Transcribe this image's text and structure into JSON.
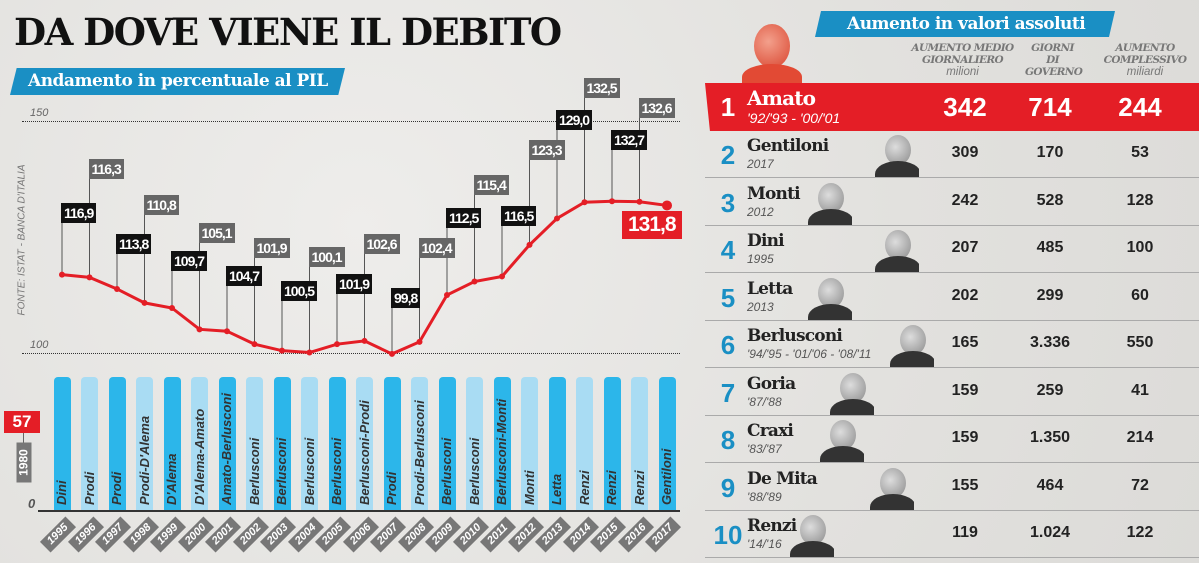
{
  "title": "DA DOVE VIENE IL DEBITO",
  "subtitle": "Andamento in percentuale al PIL",
  "source": "FONTE: ISTAT - BANCA D'ITALIA",
  "colors": {
    "red": "#e41e26",
    "blue": "#1a8fc4",
    "bar_dark": "#2cb6ea",
    "bar_light": "#a9dcf3",
    "label_black": "#111111",
    "label_gray": "#666666"
  },
  "chart_data": [
    {
      "type": "line",
      "title": "Andamento in percentuale al PIL",
      "ylabel": "% PIL",
      "ylim": [
        100,
        150
      ],
      "yticks": [
        "150",
        "100"
      ],
      "x": [
        "1995",
        "1996",
        "1997",
        "1998",
        "1999",
        "2000",
        "2001",
        "2002",
        "2003",
        "2004",
        "2005",
        "2006",
        "2007",
        "2008",
        "2009",
        "2010",
        "2011",
        "2012",
        "2013",
        "2014",
        "2015",
        "2016",
        "2017"
      ],
      "values": [
        116.9,
        116.3,
        113.8,
        110.8,
        109.7,
        105.1,
        104.7,
        101.9,
        100.5,
        100.1,
        101.9,
        102.6,
        99.8,
        102.4,
        112.5,
        115.4,
        116.5,
        123.3,
        129.0,
        132.5,
        132.7,
        132.6,
        131.8
      ],
      "labels": [
        "116,9",
        "116,3",
        "113,8",
        "110,8",
        "109,7",
        "105,1",
        "104,7",
        "101,9",
        "100,5",
        "100,1",
        "101,9",
        "102,6",
        "99,8",
        "102,4",
        "112,5",
        "115,4",
        "116,5",
        "123,3",
        "129,0",
        "132,5",
        "132,7",
        "132,6",
        "131,8"
      ],
      "baseline_1980": {
        "year": "1980",
        "value": "57"
      },
      "zero_label": "0",
      "governments": [
        "Dini",
        "Prodi",
        "Prodi",
        "Prodi-D'Alema",
        "D'Alema",
        "D'Alema-Amato",
        "Amato-Berlusconi",
        "Berlusconi",
        "Berlusconi",
        "Berlusconi",
        "Berlusconi",
        "Berlusconi-Prodi",
        "Prodi",
        "Prodi-Berlusconi",
        "Berlusconi",
        "Berlusconi",
        "Berlusconi-Monti",
        "Monti",
        "Letta",
        "Renzi",
        "Renzi",
        "Renzi",
        "Gentiloni"
      ]
    },
    {
      "type": "table",
      "title": "Aumento in valori assoluti",
      "columns": [
        {
          "label": "AUMENTO MEDIO GIORNALIERO",
          "unit": "milioni"
        },
        {
          "label": "GIORNI DI GOVERNO",
          "unit": ""
        },
        {
          "label": "AUMENTO COMPLESSIVO",
          "unit": "miliardi"
        }
      ],
      "rows": [
        {
          "rank": "1",
          "name": "Amato",
          "period": "'92/'93 - '00/'01",
          "daily": "342",
          "days": "714",
          "total": "244"
        },
        {
          "rank": "2",
          "name": "Gentiloni",
          "period": "2017",
          "daily": "309",
          "days": "170",
          "total": "53"
        },
        {
          "rank": "3",
          "name": "Monti",
          "period": "2012",
          "daily": "242",
          "days": "528",
          "total": "128"
        },
        {
          "rank": "4",
          "name": "Dini",
          "period": "1995",
          "daily": "207",
          "days": "485",
          "total": "100"
        },
        {
          "rank": "5",
          "name": "Letta",
          "period": "2013",
          "daily": "202",
          "days": "299",
          "total": "60"
        },
        {
          "rank": "6",
          "name": "Berlusconi",
          "period": "'94/'95 - '01/'06 - '08/'11",
          "daily": "165",
          "days": "3.336",
          "total": "550"
        },
        {
          "rank": "7",
          "name": "Goria",
          "period": "'87/'88",
          "daily": "159",
          "days": "259",
          "total": "41"
        },
        {
          "rank": "8",
          "name": "Craxi",
          "period": "'83/'87",
          "daily": "159",
          "days": "1.350",
          "total": "214"
        },
        {
          "rank": "9",
          "name": "De Mita",
          "period": "'88/'89",
          "daily": "155",
          "days": "464",
          "total": "72"
        },
        {
          "rank": "10",
          "name": "Renzi",
          "period": "'14/'16",
          "daily": "119",
          "days": "1.024",
          "total": "122"
        }
      ]
    }
  ]
}
